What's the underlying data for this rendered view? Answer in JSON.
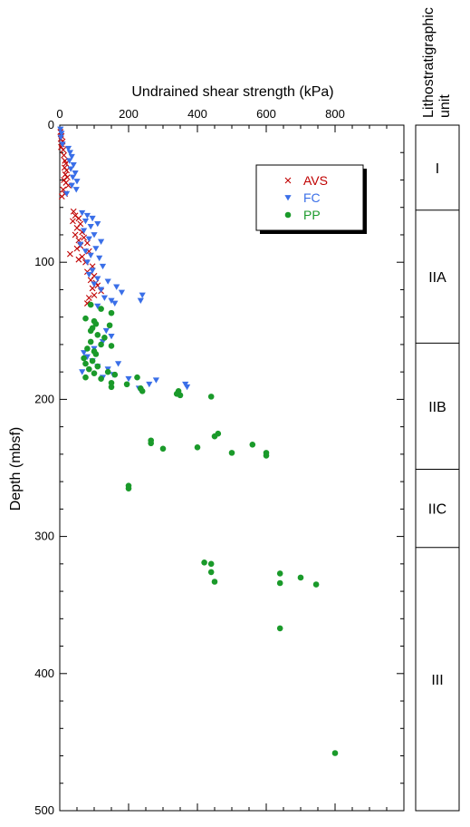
{
  "chart_data": {
    "type": "scatter",
    "xlabel": "Undrained shear strength (kPa)",
    "ylabel": "Depth (mbsf)",
    "xlim": [
      0,
      1000
    ],
    "ylim": [
      0,
      500
    ],
    "x_ticks": [
      "0",
      "200",
      "400",
      "600",
      "800"
    ],
    "y_ticks": [
      "0",
      "100",
      "200",
      "300",
      "400",
      "500"
    ],
    "legend_placement": "top-right",
    "series": [
      {
        "name": "AVS",
        "marker": "x",
        "color": "#c00000",
        "points": [
          [
            2,
            5
          ],
          [
            5,
            8
          ],
          [
            3,
            10
          ],
          [
            8,
            12
          ],
          [
            6,
            14
          ],
          [
            4,
            16
          ],
          [
            10,
            18
          ],
          [
            12,
            22
          ],
          [
            15,
            26
          ],
          [
            18,
            28
          ],
          [
            14,
            31
          ],
          [
            20,
            33
          ],
          [
            16,
            36
          ],
          [
            22,
            38
          ],
          [
            12,
            40
          ],
          [
            18,
            42
          ],
          [
            25,
            44
          ],
          [
            10,
            47
          ],
          [
            15,
            50
          ],
          [
            6,
            52
          ],
          [
            40,
            63
          ],
          [
            45,
            66
          ],
          [
            55,
            68
          ],
          [
            38,
            70
          ],
          [
            60,
            72
          ],
          [
            50,
            75
          ],
          [
            65,
            78
          ],
          [
            45,
            80
          ],
          [
            70,
            82
          ],
          [
            55,
            84
          ],
          [
            80,
            86
          ],
          [
            60,
            88
          ],
          [
            50,
            90
          ],
          [
            85,
            92
          ],
          [
            30,
            94
          ],
          [
            65,
            96
          ],
          [
            55,
            98
          ],
          [
            75,
            100
          ],
          [
            95,
            103
          ],
          [
            80,
            107
          ],
          [
            100,
            110
          ],
          [
            90,
            113
          ],
          [
            105,
            115
          ],
          [
            110,
            117
          ],
          [
            95,
            119
          ],
          [
            120,
            121
          ],
          [
            100,
            124
          ],
          [
            85,
            126
          ],
          [
            80,
            130
          ]
        ]
      },
      {
        "name": "FC",
        "marker": "triangle-down",
        "color": "#3a6fe8",
        "points": [
          [
            2,
            3
          ],
          [
            5,
            6
          ],
          [
            3,
            9
          ],
          [
            8,
            14
          ],
          [
            25,
            17
          ],
          [
            30,
            20
          ],
          [
            35,
            23
          ],
          [
            28,
            26
          ],
          [
            40,
            29
          ],
          [
            32,
            32
          ],
          [
            45,
            35
          ],
          [
            38,
            38
          ],
          [
            50,
            41
          ],
          [
            35,
            44
          ],
          [
            48,
            47
          ],
          [
            20,
            50
          ],
          [
            65,
            64
          ],
          [
            80,
            66
          ],
          [
            95,
            68
          ],
          [
            75,
            70
          ],
          [
            110,
            72
          ],
          [
            90,
            74
          ],
          [
            70,
            77
          ],
          [
            100,
            80
          ],
          [
            85,
            83
          ],
          [
            120,
            85
          ],
          [
            60,
            87
          ],
          [
            105,
            90
          ],
          [
            75,
            92
          ],
          [
            90,
            95
          ],
          [
            115,
            97
          ],
          [
            80,
            100
          ],
          [
            125,
            103
          ],
          [
            95,
            106
          ],
          [
            85,
            109
          ],
          [
            110,
            112
          ],
          [
            140,
            114
          ],
          [
            100,
            116
          ],
          [
            165,
            118
          ],
          [
            120,
            120
          ],
          [
            180,
            122
          ],
          [
            240,
            124
          ],
          [
            130,
            126
          ],
          [
            150,
            128
          ],
          [
            235,
            128
          ],
          [
            160,
            130
          ],
          [
            110,
            132
          ],
          [
            135,
            150
          ],
          [
            150,
            154
          ],
          [
            125,
            158
          ],
          [
            100,
            163
          ],
          [
            70,
            166
          ],
          [
            80,
            169
          ],
          [
            95,
            172
          ],
          [
            170,
            174
          ],
          [
            110,
            176
          ],
          [
            140,
            178
          ],
          [
            65,
            180
          ],
          [
            155,
            182
          ],
          [
            125,
            184
          ],
          [
            280,
            186
          ],
          [
            200,
            185
          ],
          [
            260,
            189
          ],
          [
            365,
            189
          ],
          [
            370,
            191
          ],
          [
            230,
            192
          ]
        ]
      },
      {
        "name": "PP",
        "marker": "circle",
        "color": "#1a9a2a",
        "points": [
          [
            90,
            131
          ],
          [
            120,
            134
          ],
          [
            150,
            137
          ],
          [
            75,
            141
          ],
          [
            100,
            143
          ],
          [
            105,
            145
          ],
          [
            145,
            146
          ],
          [
            95,
            148
          ],
          [
            90,
            150
          ],
          [
            110,
            153
          ],
          [
            130,
            155
          ],
          [
            90,
            158
          ],
          [
            120,
            160
          ],
          [
            150,
            161
          ],
          [
            80,
            163
          ],
          [
            100,
            165
          ],
          [
            105,
            167
          ],
          [
            70,
            170
          ],
          [
            95,
            172
          ],
          [
            75,
            174
          ],
          [
            110,
            176
          ],
          [
            85,
            178
          ],
          [
            140,
            180
          ],
          [
            100,
            181
          ],
          [
            160,
            182
          ],
          [
            75,
            184
          ],
          [
            120,
            185
          ],
          [
            225,
            184
          ],
          [
            150,
            188
          ],
          [
            195,
            189
          ],
          [
            150,
            191
          ],
          [
            235,
            192
          ],
          [
            345,
            194
          ],
          [
            240,
            194
          ],
          [
            340,
            196
          ],
          [
            350,
            197
          ],
          [
            440,
            198
          ],
          [
            450,
            227
          ],
          [
            460,
            225
          ],
          [
            265,
            230
          ],
          [
            265,
            232
          ],
          [
            560,
            233
          ],
          [
            400,
            235
          ],
          [
            300,
            236
          ],
          [
            500,
            239
          ],
          [
            600,
            239
          ],
          [
            600,
            241
          ],
          [
            200,
            263
          ],
          [
            200,
            265
          ],
          [
            420,
            319
          ],
          [
            440,
            320
          ],
          [
            440,
            326
          ],
          [
            640,
            327
          ],
          [
            700,
            330
          ],
          [
            640,
            334
          ],
          [
            450,
            333
          ],
          [
            745,
            335
          ],
          [
            640,
            367
          ],
          [
            800,
            458
          ]
        ]
      }
    ]
  },
  "units": {
    "title_line1": "Lithostratigraphic",
    "title_line2": "unit",
    "items": [
      {
        "label": "I",
        "top": 0,
        "bottom": 62
      },
      {
        "label": "IIA",
        "top": 62,
        "bottom": 159
      },
      {
        "label": "IIB",
        "top": 159,
        "bottom": 251
      },
      {
        "label": "IIC",
        "top": 251,
        "bottom": 308
      },
      {
        "label": "III",
        "top": 308,
        "bottom": 500
      }
    ]
  }
}
